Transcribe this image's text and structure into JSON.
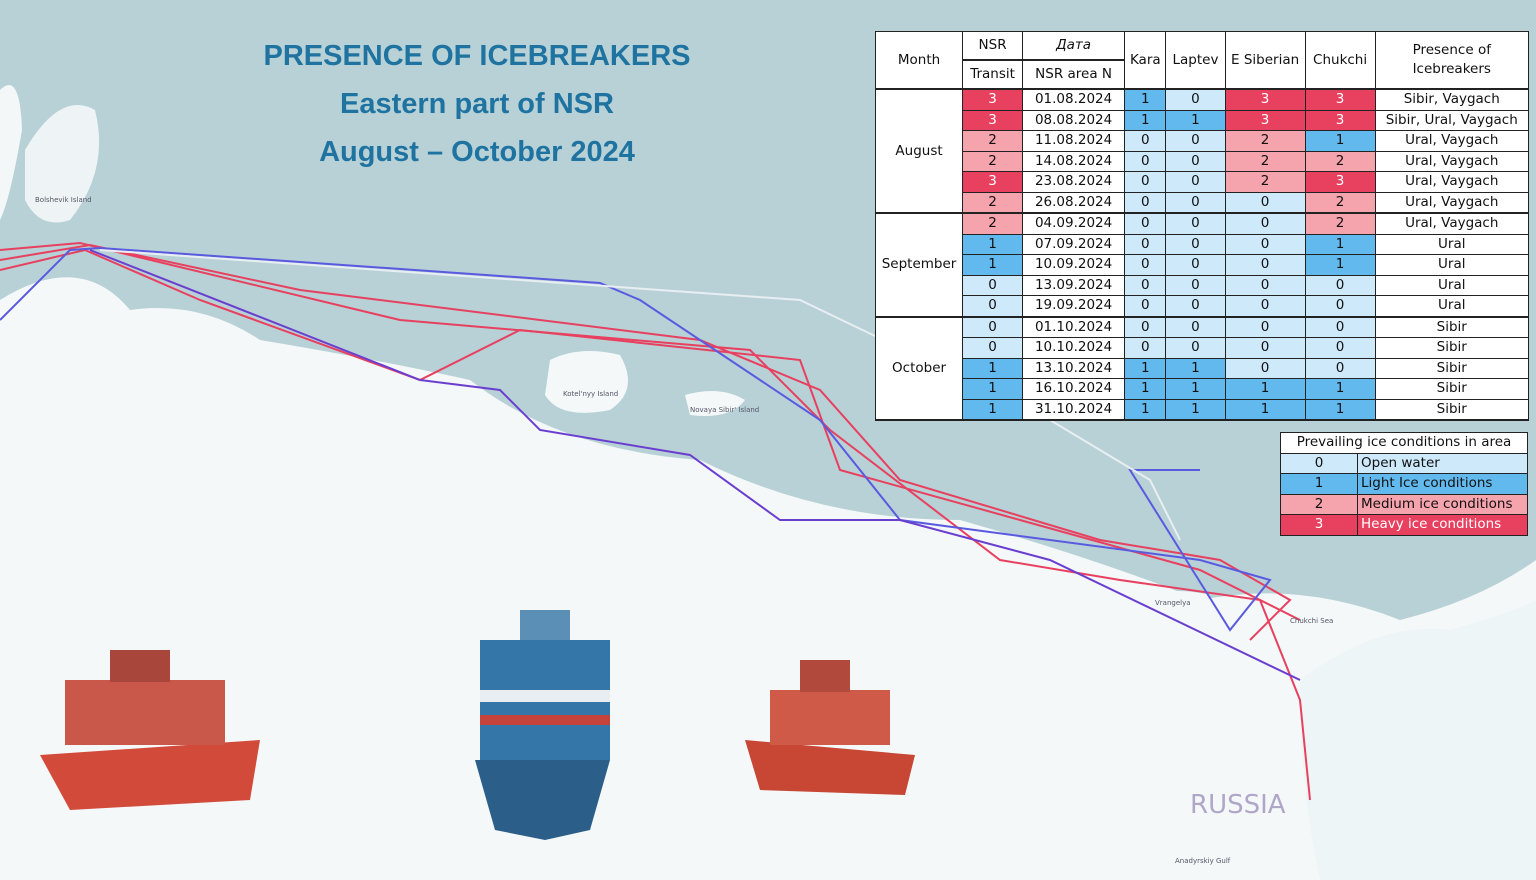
{
  "title": {
    "line1": "PRESENCE OF ICEBREAKERS",
    "line2": "Eastern part of NSR",
    "line3": "August – October 2024"
  },
  "map_labels": {
    "bolshevik": "Bolshevik Island",
    "kotelnyy": "Kotel'nyy Island",
    "novaya_sibir": "Novaya Sibir' Island",
    "vrangelya": "Vrangelya",
    "chukchi_sea": "Chukchi Sea",
    "russia": "RUSSIA",
    "anadyr": "Anadyrskiy Gulf"
  },
  "table": {
    "header": {
      "month": "Month",
      "nsr": "NSR",
      "transit": "Transit",
      "date": "Дата",
      "area": "NSR area N",
      "kara": "Kara",
      "laptev": "Laptev",
      "e_siberian": "E Siberian",
      "chukchi": "Chukchi",
      "presence_1": "Presence of",
      "presence_2": "Icebreakers"
    },
    "groups": [
      {
        "month": "August",
        "rows": [
          [
            3,
            "01.08.2024",
            1,
            0,
            3,
            3,
            "Sibir, Vaygach"
          ],
          [
            3,
            "08.08.2024",
            1,
            1,
            3,
            3,
            "Sibir, Ural, Vaygach"
          ],
          [
            2,
            "11.08.2024",
            0,
            0,
            2,
            1,
            "Ural, Vaygach"
          ],
          [
            2,
            "14.08.2024",
            0,
            0,
            2,
            2,
            "Ural, Vaygach"
          ],
          [
            3,
            "23.08.2024",
            0,
            0,
            2,
            3,
            "Ural, Vaygach"
          ],
          [
            2,
            "26.08.2024",
            0,
            0,
            0,
            2,
            "Ural, Vaygach"
          ]
        ]
      },
      {
        "month": "September",
        "rows": [
          [
            2,
            "04.09.2024",
            0,
            0,
            0,
            2,
            "Ural, Vaygach"
          ],
          [
            1,
            "07.09.2024",
            0,
            0,
            0,
            1,
            "Ural"
          ],
          [
            1,
            "10.09.2024",
            0,
            0,
            0,
            1,
            "Ural"
          ],
          [
            0,
            "13.09.2024",
            0,
            0,
            0,
            0,
            "Ural"
          ],
          [
            0,
            "19.09.2024",
            0,
            0,
            0,
            0,
            "Ural"
          ]
        ]
      },
      {
        "month": "October",
        "rows": [
          [
            0,
            "01.10.2024",
            0,
            0,
            0,
            0,
            "Sibir"
          ],
          [
            0,
            "10.10.2024",
            0,
            0,
            0,
            0,
            "Sibir"
          ],
          [
            1,
            "13.10.2024",
            1,
            1,
            0,
            0,
            "Sibir"
          ],
          [
            1,
            "16.10.2024",
            1,
            1,
            1,
            1,
            "Sibir"
          ],
          [
            1,
            "31.10.2024",
            1,
            1,
            1,
            1,
            "Sibir"
          ]
        ]
      }
    ]
  },
  "legend": {
    "title": "Prevailing ice conditions in area",
    "items": [
      {
        "value": 0,
        "label": "Open water",
        "color": "#cde9fa"
      },
      {
        "value": 1,
        "label": "Light Ice conditions",
        "color": "#62b9ee"
      },
      {
        "value": 2,
        "label": "Medium ice conditions",
        "color": "#f5a3ad"
      },
      {
        "value": 3,
        "label": "Heavy ice conditions",
        "color": "#e8405f"
      }
    ]
  }
}
